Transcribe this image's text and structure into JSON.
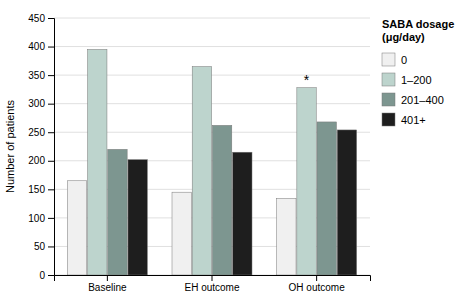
{
  "chart_data": {
    "type": "bar",
    "categories": [
      "Baseline",
      "EH outcome",
      "OH outcome"
    ],
    "series": [
      {
        "name": "0",
        "color": "#f0f0f0",
        "values": [
          165,
          145,
          134
        ]
      },
      {
        "name": "1–200",
        "color": "#bdd4cd",
        "values": [
          395,
          365,
          328
        ]
      },
      {
        "name": "201–400",
        "color": "#7d9690",
        "values": [
          220,
          262,
          268
        ]
      },
      {
        "name": "401+",
        "color": "#1e1e1e",
        "values": [
          202,
          215,
          254
        ]
      }
    ],
    "y_label": "Number of patients",
    "legend_title": "SABA dosage\n(μg/day)",
    "annotations": [
      {
        "text": "*",
        "x": "OH outcome",
        "series": "1–200",
        "y": 328
      }
    ],
    "ylim": [
      0,
      450
    ],
    "yticks": [
      0,
      50,
      100,
      150,
      200,
      250,
      300,
      350,
      400,
      450
    ],
    "grid": true,
    "legend": "right"
  }
}
